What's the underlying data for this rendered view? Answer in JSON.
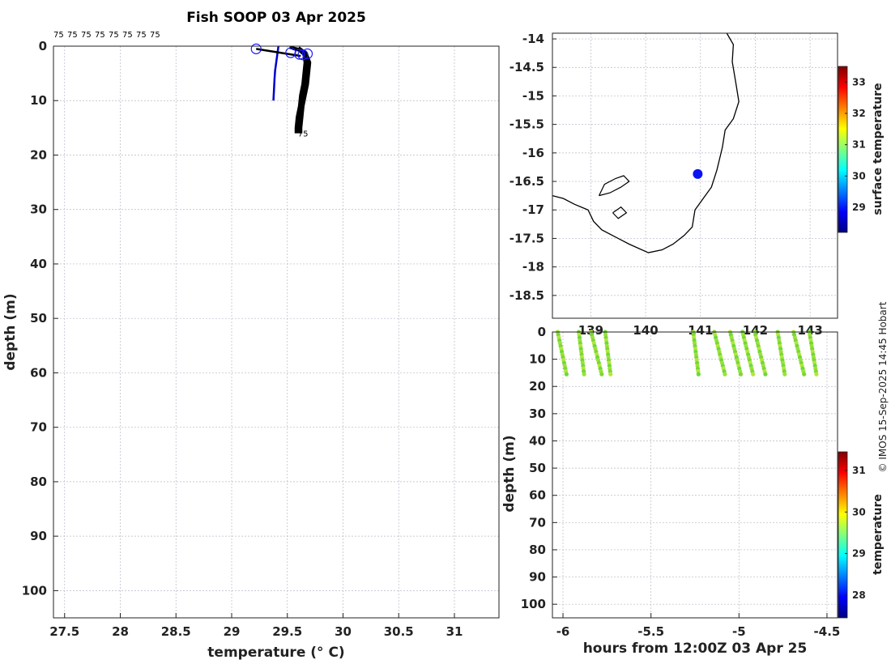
{
  "page": {
    "title": "Fish SOOP 03 Apr 2025",
    "credit": "© IMOS 15-Sep-2025 14:45 Hobart"
  },
  "chart_data": [
    {
      "id": "profile",
      "type": "line",
      "xlabel": "temperature (° C)",
      "ylabel": "depth (m)",
      "xlim": [
        27.4,
        31.4
      ],
      "ylim": [
        105,
        0
      ],
      "xticks": [
        27.5,
        28,
        28.5,
        29,
        29.5,
        30,
        30.5,
        31
      ],
      "yticks": [
        0,
        10,
        20,
        30,
        40,
        50,
        60,
        70,
        80,
        90,
        100
      ],
      "grid": true,
      "top_labels": [
        "75",
        "75",
        "75",
        "75",
        "75",
        "75",
        "75",
        "75"
      ],
      "end_label": "75",
      "series": [
        {
          "color": "#0000cc",
          "points": [
            [
              29.42,
              0
            ],
            [
              29.41,
              1.5
            ],
            [
              29.4,
              3
            ],
            [
              29.39,
              4.5
            ],
            [
              29.385,
              6
            ],
            [
              29.38,
              8
            ],
            [
              29.375,
              10
            ]
          ]
        }
      ],
      "profiles_black": [
        [
          [
            29.52,
            0.2
          ],
          [
            29.6,
            0.6
          ],
          [
            29.65,
            1.5
          ],
          [
            29.66,
            3
          ],
          [
            29.65,
            5
          ],
          [
            29.64,
            7
          ],
          [
            29.62,
            9
          ],
          [
            29.61,
            11
          ],
          [
            29.59,
            13
          ],
          [
            29.58,
            15
          ],
          [
            29.58,
            16
          ]
        ],
        [
          [
            29.55,
            0.4
          ],
          [
            29.62,
            0.8
          ],
          [
            29.67,
            1.8
          ],
          [
            29.67,
            3.5
          ],
          [
            29.66,
            5.5
          ],
          [
            29.64,
            7.5
          ],
          [
            29.62,
            9.5
          ],
          [
            29.61,
            11.5
          ],
          [
            29.6,
            13.5
          ],
          [
            29.59,
            15.5
          ]
        ],
        [
          [
            29.58,
            0.5
          ],
          [
            29.64,
            1
          ],
          [
            29.68,
            2
          ],
          [
            29.68,
            4
          ],
          [
            29.67,
            6
          ],
          [
            29.65,
            8
          ],
          [
            29.63,
            10
          ],
          [
            29.62,
            12
          ],
          [
            29.61,
            14
          ],
          [
            29.6,
            16
          ]
        ],
        [
          [
            29.6,
            0.3
          ],
          [
            29.66,
            1.2
          ],
          [
            29.69,
            2.5
          ],
          [
            29.69,
            4.5
          ],
          [
            29.67,
            6.5
          ],
          [
            29.65,
            8.5
          ],
          [
            29.63,
            10.5
          ],
          [
            29.62,
            12.5
          ],
          [
            29.61,
            14.5
          ],
          [
            29.61,
            15.8
          ]
        ],
        [
          [
            29.62,
            0.6
          ],
          [
            29.67,
            1.4
          ],
          [
            29.7,
            3
          ],
          [
            29.69,
            5
          ],
          [
            29.68,
            7
          ],
          [
            29.66,
            9
          ],
          [
            29.64,
            11
          ],
          [
            29.63,
            13
          ],
          [
            29.62,
            15
          ],
          [
            29.62,
            16
          ]
        ]
      ],
      "start_marker": [
        [
          29.22,
          0.5
        ],
        [
          29.62,
          1.8
        ]
      ],
      "circles": [
        [
          29.22,
          0.5
        ],
        [
          29.53,
          1.2
        ],
        [
          29.61,
          1.5
        ],
        [
          29.64,
          1.6
        ],
        [
          29.68,
          1.4
        ]
      ]
    },
    {
      "id": "map",
      "type": "scatter",
      "xlim": [
        138.3,
        143.5
      ],
      "ylim": [
        -18.9,
        -13.9
      ],
      "xticks": [
        139,
        140,
        141,
        142,
        143
      ],
      "xtick_labels": [
        "139",
        "140",
        "141",
        "142",
        "143"
      ],
      "yticks": [
        -14,
        -14.5,
        -15,
        -15.5,
        -16,
        -16.5,
        -17,
        -17.5,
        -18,
        -18.5
      ],
      "grid": true,
      "position": {
        "lon": 140.95,
        "lat": -16.37,
        "color": "#0a14f0"
      },
      "coastline": [
        [
          141.48,
          -13.9
        ],
        [
          141.6,
          -14.1
        ],
        [
          141.58,
          -14.4
        ],
        [
          141.65,
          -14.8
        ],
        [
          141.7,
          -15.1
        ],
        [
          141.6,
          -15.4
        ],
        [
          141.45,
          -15.6
        ],
        [
          141.4,
          -15.9
        ],
        [
          141.35,
          -16.1
        ],
        [
          141.3,
          -16.3
        ],
        [
          141.2,
          -16.6
        ],
        [
          141.05,
          -16.8
        ],
        [
          140.9,
          -17.0
        ],
        [
          140.85,
          -17.3
        ],
        [
          140.7,
          -17.45
        ],
        [
          140.5,
          -17.6
        ],
        [
          140.3,
          -17.7
        ],
        [
          140.05,
          -17.75
        ],
        [
          139.7,
          -17.6
        ],
        [
          139.4,
          -17.45
        ],
        [
          139.2,
          -17.35
        ],
        [
          139.05,
          -17.2
        ],
        [
          138.95,
          -17.0
        ],
        [
          138.7,
          -16.9
        ],
        [
          138.5,
          -16.8
        ],
        [
          138.3,
          -16.75
        ]
      ],
      "islands": [
        [
          [
            139.15,
            -16.75
          ],
          [
            139.25,
            -16.55
          ],
          [
            139.45,
            -16.45
          ],
          [
            139.6,
            -16.4
          ],
          [
            139.7,
            -16.5
          ],
          [
            139.55,
            -16.6
          ],
          [
            139.35,
            -16.7
          ],
          [
            139.15,
            -16.75
          ]
        ],
        [
          [
            139.4,
            -17.05
          ],
          [
            139.55,
            -16.95
          ],
          [
            139.65,
            -17.05
          ],
          [
            139.5,
            -17.15
          ],
          [
            139.4,
            -17.05
          ]
        ]
      ],
      "colorbar": {
        "label": "surface temperature",
        "min": 28.2,
        "max": 33.5,
        "ticks": [
          29,
          30,
          31,
          32,
          33
        ],
        "colors": [
          "#00007f",
          "#0000ff",
          "#007fff",
          "#00ffff",
          "#7fff7f",
          "#ffff00",
          "#ff7f00",
          "#ff0000",
          "#7f0000"
        ]
      }
    },
    {
      "id": "section",
      "type": "scatter",
      "xlabel": "hours from 12:00Z 03 Apr 25",
      "ylabel": "depth (m)",
      "xlim": [
        -6.06,
        -4.44
      ],
      "ylim": [
        105,
        0
      ],
      "xticks": [
        -6,
        -5.5,
        -5,
        -4.5
      ],
      "xtick_labels": [
        "-6",
        "-5.5",
        "-5",
        "-4.5"
      ],
      "yticks": [
        0,
        10,
        20,
        30,
        40,
        50,
        60,
        70,
        80,
        90,
        100
      ],
      "grid": true,
      "casts": [
        {
          "x0": -6.03,
          "x1": -5.98
        },
        {
          "x0": -5.91,
          "x1": -5.88
        },
        {
          "x0": -5.84,
          "x1": -5.78
        },
        {
          "x0": -5.76,
          "x1": -5.73
        },
        {
          "x0": -5.26,
          "x1": -5.23
        },
        {
          "x0": -5.14,
          "x1": -5.08
        },
        {
          "x0": -5.05,
          "x1": -4.99
        },
        {
          "x0": -4.98,
          "x1": -4.92
        },
        {
          "x0": -4.91,
          "x1": -4.85
        },
        {
          "x0": -4.78,
          "x1": -4.74
        },
        {
          "x0": -4.69,
          "x1": -4.63
        },
        {
          "x0": -4.6,
          "x1": -4.56
        }
      ],
      "cast_max_depth": 15.5,
      "point_colors": [
        "#9be23a",
        "#7ed63a",
        "#b2e83a",
        "#6fd83c"
      ],
      "colorbar": {
        "label": "temperature",
        "min": 27.45,
        "max": 31.45,
        "ticks": [
          28,
          29,
          30,
          31
        ],
        "colors": [
          "#00007f",
          "#0000ff",
          "#007fff",
          "#00ffff",
          "#7fff7f",
          "#ffff00",
          "#ff7f00",
          "#ff0000",
          "#7f0000"
        ]
      }
    }
  ]
}
